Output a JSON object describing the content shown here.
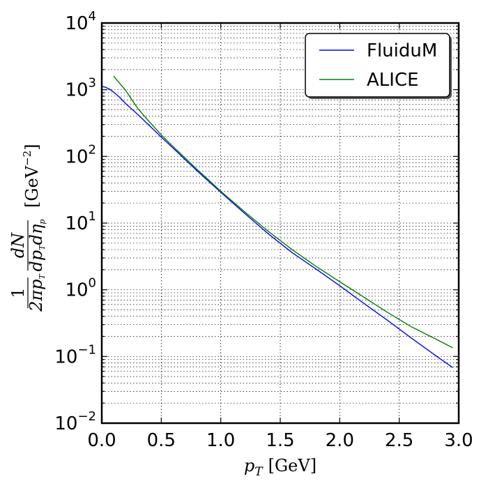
{
  "chart_data": {
    "type": "line",
    "title": "",
    "xlabel": "p_T [GeV]",
    "ylabel": "(1/(2π p_T)) dN/(dp_T dη_p) [GeV^-2]",
    "xlim": [
      0.0,
      3.0
    ],
    "ylim": [
      0.01,
      10000
    ],
    "y_scale": "log",
    "grid": true,
    "legend_position": "top-right",
    "x_tick_labels": [
      "0.0",
      "0.5",
      "1.0",
      "1.5",
      "2.0",
      "2.5",
      "3.0"
    ],
    "x_ticks": [
      0.0,
      0.5,
      1.0,
      1.5,
      2.0,
      2.5,
      3.0
    ],
    "y_ticks": [
      {
        "value": 10000,
        "base": "10",
        "exp": "4"
      },
      {
        "value": 1000,
        "base": "10",
        "exp": "3"
      },
      {
        "value": 100,
        "base": "10",
        "exp": "2"
      },
      {
        "value": 10,
        "base": "10",
        "exp": "1"
      },
      {
        "value": 1,
        "base": "10",
        "exp": "0"
      },
      {
        "value": 0.1,
        "base": "10",
        "exp": "−1"
      },
      {
        "value": 0.01,
        "base": "10",
        "exp": "−2"
      }
    ],
    "series": [
      {
        "name": "FluiduM",
        "color": "#0000ff",
        "x": [
          0.0,
          0.03,
          0.06,
          0.1,
          0.15,
          0.2,
          0.3,
          0.4,
          0.5,
          0.6,
          0.7,
          0.8,
          0.9,
          1.0,
          1.2,
          1.4,
          1.6,
          1.8,
          2.0,
          2.2,
          2.4,
          2.6,
          2.8,
          2.95
        ],
        "y": [
          1120,
          1090,
          1030,
          920,
          770,
          620,
          430,
          290,
          195,
          133,
          90,
          61,
          42,
          29,
          14,
          6.9,
          3.6,
          2.05,
          1.15,
          0.63,
          0.35,
          0.19,
          0.105,
          0.068
        ]
      },
      {
        "name": "ALICE",
        "color": "#008000",
        "x": [
          0.1,
          0.15,
          0.2,
          0.25,
          0.3,
          0.4,
          0.5,
          0.6,
          0.7,
          0.8,
          0.9,
          1.0,
          1.2,
          1.4,
          1.6,
          1.8,
          2.0,
          2.2,
          2.4,
          2.6,
          2.8,
          2.95
        ],
        "y": [
          1600,
          1250,
          980,
          720,
          530,
          330,
          210,
          140,
          95,
          64,
          44,
          30,
          14.8,
          7.5,
          4.0,
          2.25,
          1.32,
          0.78,
          0.46,
          0.28,
          0.185,
          0.135
        ]
      }
    ]
  },
  "axis_text": {
    "x_main": "p",
    "x_sub": "T",
    "x_unit": "[GeV]",
    "y_frac_1_num": "1",
    "y_frac_1_den_a": "2πp",
    "y_frac_1_den_sub": "T",
    "y_frac_2_num": "dN",
    "y_frac_2_den_a": "dp",
    "y_frac_2_den_sub1": "T",
    "y_frac_2_den_b": "dη",
    "y_frac_2_den_sub2": "p",
    "y_unit_open": "[GeV",
    "y_unit_exp": "−2",
    "y_unit_close": "]"
  }
}
